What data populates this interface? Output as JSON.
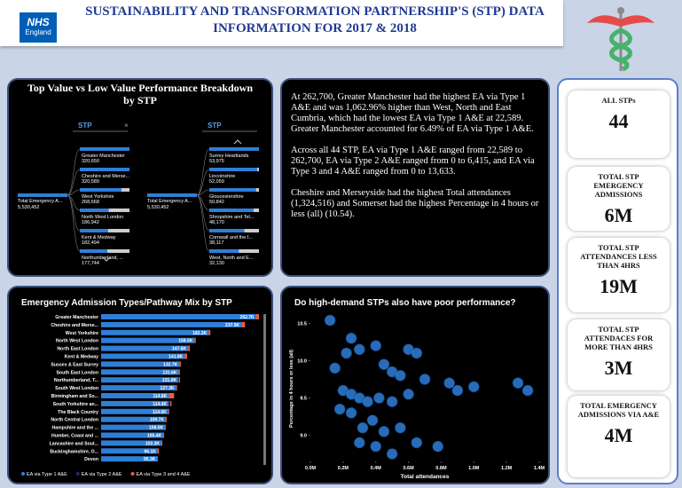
{
  "header": {
    "brand": "NHS",
    "region": "England",
    "title": "SUSTAINABILITY AND TRANSFORMATION PARTNERSHIP'S (STP) DATA INFORMATION FOR 2017 & 2018"
  },
  "decomposition": {
    "title": "Top Value vs Low Value Performance Breakdown by STP",
    "trees": [
      {
        "filter": "STP",
        "root": {
          "label": "Total Emergency A...",
          "value": 5530452,
          "value_label": "5,530,452"
        },
        "nodes": [
          {
            "label": "Greater Manchester",
            "value": 320650,
            "value_label": "320,650"
          },
          {
            "label": "Cheshire and Merse...",
            "value": 320589,
            "value_label": "320,589"
          },
          {
            "label": "West Yorkshire",
            "value": 268668,
            "value_label": "268,668"
          },
          {
            "label": "North West London",
            "value": 186942,
            "value_label": "186,942"
          },
          {
            "label": "Kent & Medway",
            "value": 182494,
            "value_label": "182,494"
          },
          {
            "label": "Northumberland, ...",
            "value": 177744,
            "value_label": "177,744"
          }
        ]
      },
      {
        "filter": "STP",
        "root": {
          "label": "Total Emergency A...",
          "value": 5530452,
          "value_label": "5,530,452"
        },
        "nodes": [
          {
            "label": "Surrey Heartlands",
            "value": 53975,
            "value_label": "53,975"
          },
          {
            "label": "Lincolnshire",
            "value": 52059,
            "value_label": "52,059"
          },
          {
            "label": "Gloucestershire",
            "value": 50842,
            "value_label": "50,842"
          },
          {
            "label": "Shropshire and Tel...",
            "value": 48170,
            "value_label": "48,170"
          },
          {
            "label": "Cornwall and the I...",
            "value": 38117,
            "value_label": "38,117"
          },
          {
            "label": "West, North and E...",
            "value": 32130,
            "value_label": "32,130"
          }
        ]
      }
    ]
  },
  "narrative": {
    "paragraphs": [
      "At 262,700, Greater Manchester had the highest EA via Type 1 A&E and was 1,062.96% higher than West, North and East Cumbria, which had the lowest EA via Type 1 A&E at 22,589.",
      "Greater Manchester accounted for 6.49% of EA via Type 1 A&E.",
      "Across all 44 STP, EA via Type 1 A&E ranged from 22,589 to 262,700, EA via Type 2 A&E ranged from 0 to 6,415, and EA via Type 3 and 4 A&E ranged from 0 to 13,633.",
      "Cheshire and Merseyside had the highest Total attendances (1,324,516) and Somerset had the highest Percentage in 4 hours or less (all) (10.54)."
    ]
  },
  "chart_data": [
    {
      "type": "bar",
      "orientation": "horizontal",
      "stacked": true,
      "title": "Emergency Admission Types/Pathway Mix by STP",
      "categories": [
        "Greater Manchester",
        "Cheshire and Merse...",
        "West Yorkshire",
        "North West London",
        "North East London",
        "Kent & Medway",
        "Sussex & East Surrey",
        "South East London",
        "Northumberland, T...",
        "South West London",
        "Birmingham and So...",
        "South Yorkshire an...",
        "The Black Country",
        "North Central London",
        "Hampshire and the ...",
        "Humber, Coast and ...",
        "Lancashire and Sout...",
        "Buckinghamshire, O...",
        "Devon"
      ],
      "series": [
        {
          "name": "EA via Type 1 A&E",
          "color": "#2f7fd8",
          "values": [
            262700,
            237900,
            182300,
            158500,
            147600,
            141800,
            132700,
            131600,
            131000,
            127300,
            114800,
            114400,
            114000,
            109700,
            108500,
            105400,
            102300,
            96100,
            95300
          ],
          "value_labels": [
            "262.7K",
            "237.9K",
            "182.3K",
            "158.5K",
            "147.6K",
            "141.8K",
            "132.7K",
            "131.6K",
            "131.0K",
            "127.3K",
            "114.8K",
            "114.4K",
            "114.0K",
            "109.7K",
            "108.5K",
            "105.4K",
            "102.3K",
            "96.1K",
            "95.3K"
          ]
        },
        {
          "name": "EA via Type 2 A&E",
          "color": "#1a2a6c",
          "values": [
            0,
            0,
            0,
            0,
            0,
            0,
            0,
            0,
            1000,
            0,
            0,
            3000,
            0,
            0,
            0,
            0,
            0,
            0,
            0
          ]
        },
        {
          "name": "EA via Type 3 and 4 A&E",
          "color": "#e8603c",
          "values": [
            5000,
            6000,
            3000,
            2000,
            3000,
            4000,
            2500,
            2000,
            2000,
            1500,
            9000,
            2000,
            1500,
            1500,
            1500,
            1500,
            1500,
            2000,
            1000
          ]
        }
      ],
      "legend": "bottom"
    },
    {
      "type": "scatter",
      "title": "Do high-demand STPs also have poor performance?",
      "x_label": "Total attendances",
      "y_label": "Percentage in 4 hours or less (all)",
      "color": "#2f7fd8",
      "x": [
        120000,
        220000,
        250000,
        300000,
        150000,
        400000,
        450000,
        600000,
        650000,
        500000,
        550000,
        700000,
        850000,
        900000,
        1000000,
        1270000,
        1330000,
        200000,
        250000,
        300000,
        350000,
        420000,
        500000,
        600000,
        180000,
        250000,
        380000,
        320000,
        450000,
        550000,
        300000,
        400000,
        650000,
        780000,
        500000
      ],
      "y": [
        10.54,
        10.1,
        10.3,
        10.15,
        9.9,
        10.2,
        9.95,
        10.15,
        10.1,
        9.85,
        9.8,
        9.75,
        9.7,
        9.6,
        9.65,
        9.7,
        9.6,
        9.6,
        9.55,
        9.5,
        9.45,
        9.5,
        9.45,
        9.55,
        9.35,
        9.3,
        9.2,
        9.1,
        9.05,
        9.1,
        8.9,
        8.85,
        8.9,
        8.85,
        8.75
      ],
      "xlim": [
        0,
        1400000
      ],
      "xticks": [
        {
          "value": 0,
          "label": "0.0M"
        },
        {
          "value": 200000,
          "label": "0.2M"
        },
        {
          "value": 400000,
          "label": "0.4M"
        },
        {
          "value": 600000,
          "label": "0.6M"
        },
        {
          "value": 800000,
          "label": "0.8M"
        },
        {
          "value": 1000000,
          "label": "1.0M"
        },
        {
          "value": 1200000,
          "label": "1.2M"
        },
        {
          "value": 1400000,
          "label": "1.4M"
        }
      ],
      "ylim": [
        8.65,
        10.6
      ],
      "yticks": [
        {
          "value": 9,
          "label": "9.0"
        },
        9.5,
        {
          "value": 10,
          "label": "10.0"
        },
        10.5
      ]
    }
  ],
  "kpis": [
    {
      "label": "ALL STPs",
      "value": 44
    },
    {
      "label": "TOTAL STP EMERGENCY ADMISSIONS",
      "value": "6M"
    },
    {
      "label": "TOTAL STP ATTENDANCES LESS THAN 4HRS",
      "value": "19M"
    },
    {
      "label": "TOTAL STP ATTENDACES FOR MORE THAN 4HRS",
      "value": "3M"
    },
    {
      "label": "TOTAL EMERGENCY ADMISSIONS VIA A&E",
      "value": "4M"
    }
  ]
}
